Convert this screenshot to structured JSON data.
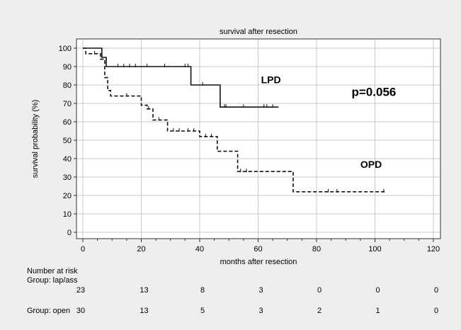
{
  "chart_data": {
    "type": "line",
    "subtype": "kaplan-meier step",
    "title": "survival after resection",
    "xlabel": "months after resection",
    "ylabel": "survival probability (%)",
    "xlim": [
      0,
      120
    ],
    "ylim": [
      0,
      100
    ],
    "x_ticks": [
      0,
      20,
      40,
      60,
      80,
      100,
      120
    ],
    "y_ticks": [
      0,
      10,
      20,
      30,
      40,
      50,
      60,
      70,
      80,
      90,
      100
    ],
    "grid": true,
    "annotations": [
      {
        "text": "LPD",
        "x": 61,
        "y": 81
      },
      {
        "text": "p=0.056",
        "x": 92,
        "y": 74
      },
      {
        "text": "OPD",
        "x": 95,
        "y": 35
      }
    ],
    "series": [
      {
        "name": "LPD",
        "style": "solid",
        "steps": [
          [
            0,
            100
          ],
          [
            6.5,
            100
          ],
          [
            6.5,
            95
          ],
          [
            8,
            95
          ],
          [
            8,
            90
          ],
          [
            37,
            90
          ],
          [
            37,
            80
          ],
          [
            47,
            80
          ],
          [
            47,
            68
          ],
          [
            67,
            68
          ]
        ],
        "censor_x": [
          12,
          14,
          16,
          18,
          22,
          28,
          35,
          36,
          41,
          48.5,
          49,
          55,
          62,
          63,
          65
        ]
      },
      {
        "name": "OPD",
        "style": "dashed",
        "steps": [
          [
            0,
            100
          ],
          [
            1,
            100
          ],
          [
            1,
            97
          ],
          [
            6,
            97
          ],
          [
            6,
            94
          ],
          [
            7.5,
            94
          ],
          [
            7.5,
            84
          ],
          [
            8.5,
            84
          ],
          [
            8.5,
            77
          ],
          [
            9.5,
            77
          ],
          [
            9.5,
            74
          ],
          [
            20,
            74
          ],
          [
            20,
            69
          ],
          [
            22,
            69
          ],
          [
            22,
            67
          ],
          [
            24,
            67
          ],
          [
            24,
            61
          ],
          [
            29,
            61
          ],
          [
            29,
            55
          ],
          [
            40,
            55
          ],
          [
            40,
            52
          ],
          [
            46,
            52
          ],
          [
            46,
            44
          ],
          [
            53,
            44
          ],
          [
            53,
            33
          ],
          [
            72,
            33
          ],
          [
            72,
            22
          ],
          [
            104,
            22
          ]
        ],
        "censor_x": [
          4,
          15,
          22.5,
          26,
          31,
          33,
          36,
          38,
          42,
          44,
          54,
          56,
          84,
          87,
          103
        ]
      }
    ]
  },
  "risk_table": {
    "heading": "Number at risk",
    "groups": [
      {
        "label": "Group: lap/ass",
        "counts": [
          "23",
          "13",
          "8",
          "3",
          "0",
          "0",
          "0"
        ]
      },
      {
        "label": "Group: open",
        "counts": [
          "30",
          "13",
          "5",
          "3",
          "2",
          "1",
          "0"
        ]
      }
    ]
  }
}
